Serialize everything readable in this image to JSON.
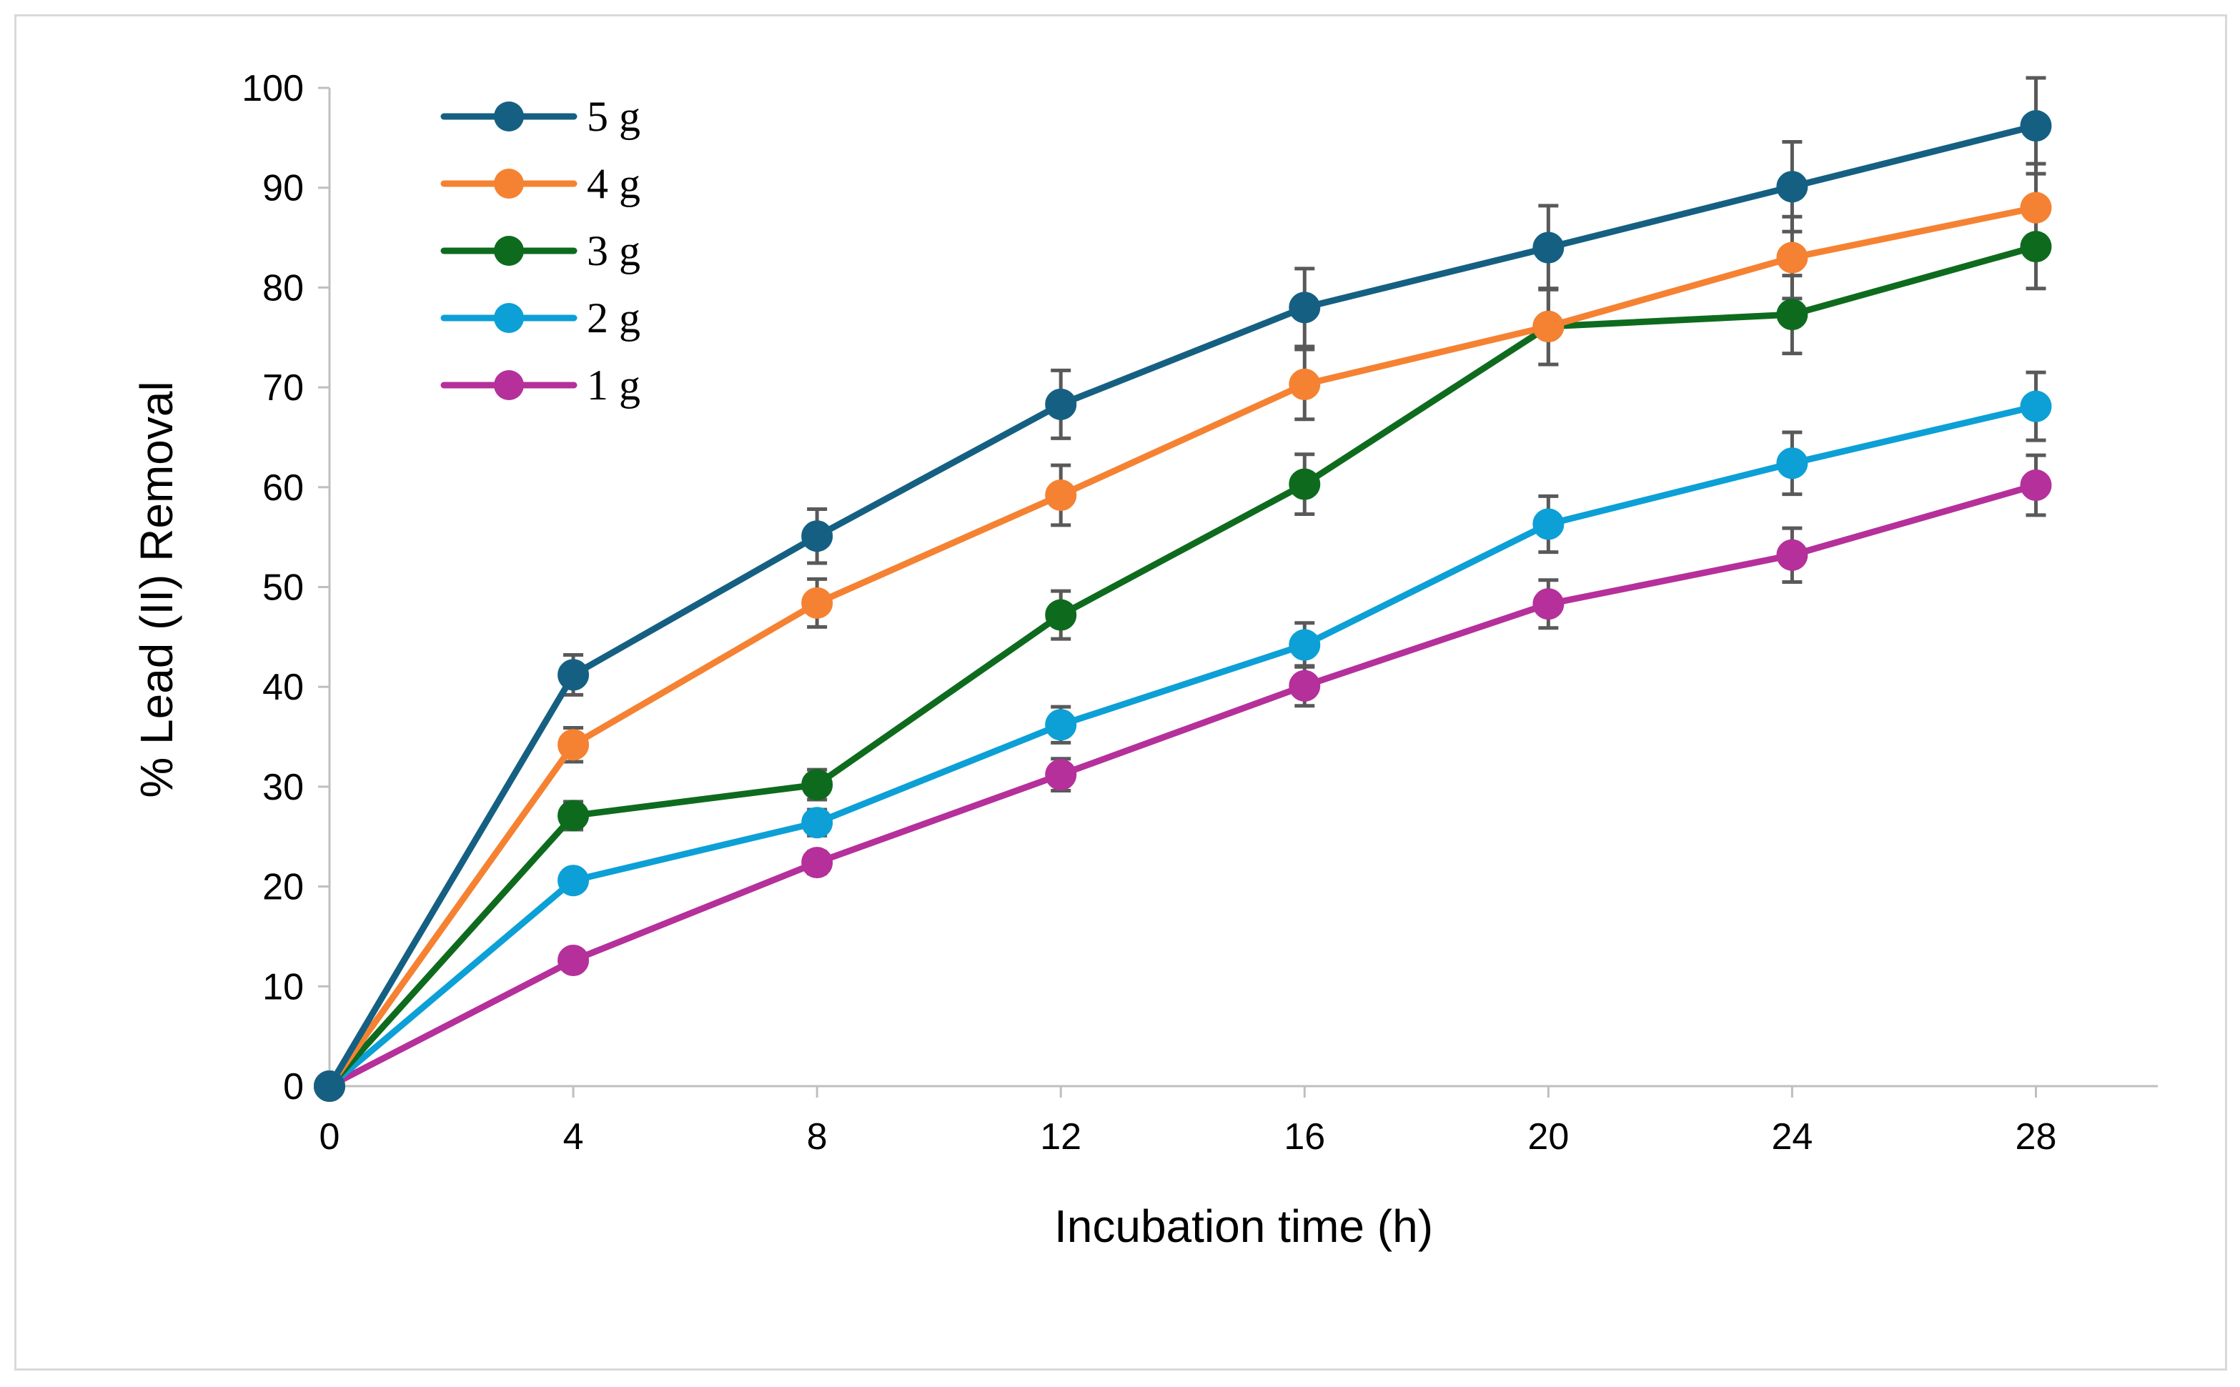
{
  "chart_data": {
    "type": "line",
    "xlabel": "Incubation time (h)",
    "ylabel": "% Lead (II) Removal",
    "x": [
      0,
      4,
      8,
      12,
      16,
      20,
      24,
      28
    ],
    "x_ticks": [
      "0",
      "4",
      "8",
      "12",
      "16",
      "20",
      "24",
      "28"
    ],
    "xlim": [
      0,
      30
    ],
    "ylim": [
      0,
      100
    ],
    "y_ticks": [
      "0",
      "10",
      "20",
      "30",
      "40",
      "50",
      "60",
      "70",
      "80",
      "90",
      "100"
    ],
    "grid": false,
    "legend_position": "top-left",
    "error_bar_color": "#595959",
    "series": [
      {
        "name": "5 g",
        "color": "#156082",
        "values": [
          0,
          41.2,
          55.1,
          68.3,
          78.0,
          84.0,
          90.1,
          96.2
        ],
        "errors": [
          0,
          2.0,
          2.7,
          3.4,
          3.9,
          4.2,
          4.5,
          4.8
        ]
      },
      {
        "name": "4 g",
        "color": "#F58232",
        "values": [
          0,
          34.2,
          48.4,
          59.2,
          70.3,
          76.1,
          83.0,
          88.0
        ],
        "errors": [
          0,
          1.7,
          2.4,
          3.0,
          3.5,
          3.8,
          4.1,
          4.4
        ]
      },
      {
        "name": "3 g",
        "color": "#0E6B1E",
        "values": [
          0,
          27.1,
          30.2,
          47.2,
          60.3,
          76.1,
          77.3,
          84.1
        ],
        "errors": [
          0,
          1.4,
          1.5,
          2.4,
          3.0,
          3.8,
          3.9,
          4.2
        ]
      },
      {
        "name": "2 g",
        "color": "#0CA0D6",
        "values": [
          0,
          20.6,
          26.4,
          36.2,
          44.2,
          56.3,
          62.4,
          68.1
        ],
        "errors": [
          0,
          1.0,
          1.3,
          1.8,
          2.2,
          2.8,
          3.1,
          3.4
        ]
      },
      {
        "name": "1 g",
        "color": "#B5309A",
        "values": [
          0,
          12.6,
          22.4,
          31.2,
          40.1,
          48.3,
          53.2,
          60.2
        ],
        "errors": [
          0,
          0.6,
          1.1,
          1.6,
          2.0,
          2.4,
          2.7,
          3.0
        ]
      }
    ]
  }
}
